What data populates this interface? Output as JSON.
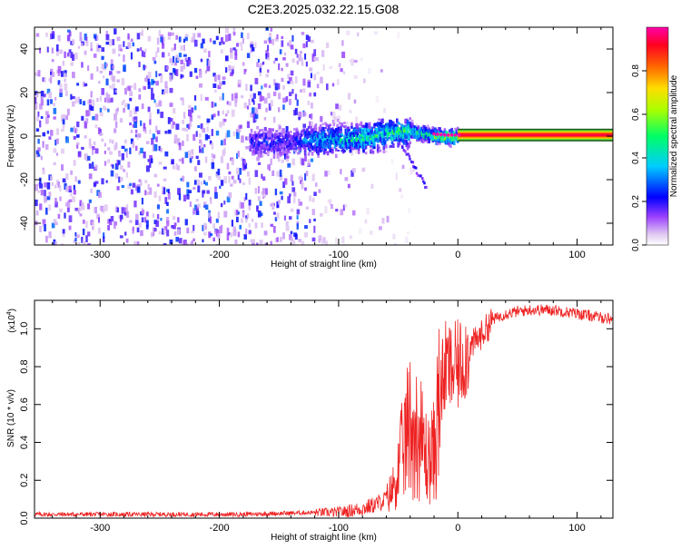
{
  "title": "C2E3.2025.032.22.15.G08",
  "chart_data": [
    {
      "type": "heatmap",
      "xlabel": "Height of straight line (km)",
      "ylabel": "Frequency (Hz)",
      "xlim": [
        -355,
        130
      ],
      "ylim": [
        -50,
        50
      ],
      "xticks": [
        -300,
        -200,
        -100,
        0,
        100
      ],
      "yticks": [
        -40,
        -20,
        0,
        20,
        40
      ],
      "grid": false,
      "colorbar": {
        "label": "Normalized spectral amplitude",
        "range": [
          0,
          1
        ],
        "ticks": [
          0.0,
          0.2,
          0.4,
          0.6,
          0.8
        ],
        "colormap": [
          "#ffffff",
          "#e0c8f0",
          "#8000ff",
          "#0000ff",
          "#00ffff",
          "#00ff00",
          "#ffff00",
          "#ff8000",
          "#ff0000",
          "#ff00ff"
        ]
      },
      "signal_band": {
        "frequency_hz": 0.5,
        "start_height_km": 0,
        "end_height_km": 130,
        "amplitude": 1.0
      },
      "noise_region": {
        "x_range": [
          -355,
          -85
        ],
        "frequency_range": [
          -50,
          50
        ],
        "amplitude_range": [
          0.05,
          0.3
        ]
      },
      "transition_region": {
        "x_range": [
          -160,
          0
        ],
        "frequency_path": [
          [
            -160,
            -2
          ],
          [
            -120,
            -1
          ],
          [
            -80,
            0
          ],
          [
            -60,
            2
          ],
          [
            -45,
            3
          ],
          [
            -30,
            2
          ],
          [
            -20,
            1
          ],
          [
            -10,
            0.5
          ],
          [
            0,
            0.5
          ]
        ]
      }
    },
    {
      "type": "line",
      "xlabel": "Height of straight line (km)",
      "ylabel": "SNR (10 * v/v)",
      "y_multiplier_label": "(x10",
      "y_multiplier_exponent": "4",
      "y_multiplier_close": ")",
      "xlim": [
        -355,
        130
      ],
      "ylim": [
        0,
        1.15
      ],
      "xticks": [
        -300,
        -200,
        -100,
        0,
        100
      ],
      "yticks": [
        0.0,
        0.2,
        0.4,
        0.6,
        0.8,
        1.0
      ],
      "grid": false,
      "series": [
        {
          "color": "#ee2222",
          "x": [
            -355,
            -300,
            -250,
            -200,
            -180,
            -150,
            -120,
            -100,
            -90,
            -80,
            -70,
            -60,
            -55,
            -50,
            -45,
            -40,
            -35,
            -30,
            -25,
            -20,
            -15,
            -10,
            -5,
            0,
            5,
            10,
            20,
            30,
            40,
            50,
            60,
            80,
            100,
            120,
            130
          ],
          "y": [
            0.02,
            0.02,
            0.02,
            0.02,
            0.02,
            0.025,
            0.03,
            0.03,
            0.04,
            0.05,
            0.07,
            0.1,
            0.15,
            0.25,
            0.4,
            0.5,
            0.45,
            0.4,
            0.3,
            0.35,
            0.65,
            0.8,
            0.78,
            0.8,
            0.85,
            0.9,
            0.97,
            1.05,
            1.08,
            1.09,
            1.1,
            1.1,
            1.08,
            1.06,
            1.05
          ]
        }
      ]
    }
  ]
}
